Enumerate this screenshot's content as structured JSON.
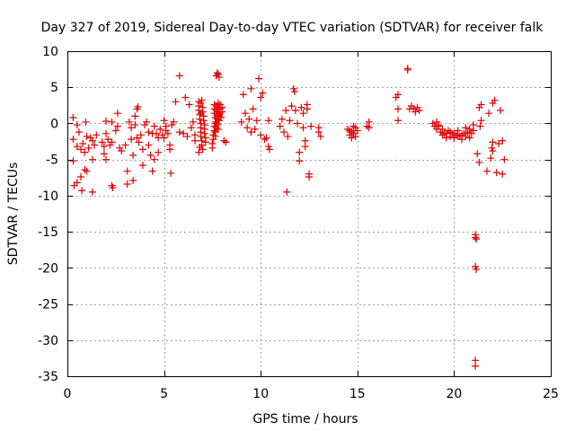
{
  "chart_data": {
    "type": "scatter",
    "title": "Day 327 of 2019, Sidereal Day-to-day VTEC variation (SDTVAR) for receiver falk",
    "xlabel": "GPS time / hours",
    "ylabel": "SDTVAR / TECUs",
    "xlim": [
      0,
      25
    ],
    "ylim": [
      -35,
      10
    ],
    "xticks": [
      0,
      5,
      10,
      15,
      20,
      25
    ],
    "yticks": [
      10,
      5,
      0,
      -5,
      -10,
      -15,
      -20,
      -25,
      -30,
      -35
    ],
    "xtick_labels": [
      "0",
      "5",
      "10",
      "15",
      "20",
      "25"
    ],
    "ytick_labels": [
      "10",
      "5",
      "0",
      "-5",
      "-10",
      "-15",
      "-20",
      "-25",
      "-30",
      "-35"
    ],
    "grid": true,
    "marker": "+",
    "color": "#e00000",
    "series": [
      {
        "name": "SDTVAR",
        "points": [
          [
            0.3,
            0.8
          ],
          [
            0.3,
            -2.2
          ],
          [
            0.3,
            -5.2
          ],
          [
            0.35,
            -8.6
          ],
          [
            0.5,
            -0.2
          ],
          [
            0.5,
            -3.2
          ],
          [
            0.5,
            -8.2
          ],
          [
            0.6,
            -1.2
          ],
          [
            0.7,
            -3.6
          ],
          [
            0.7,
            -7.4
          ],
          [
            0.75,
            -9.3
          ],
          [
            0.8,
            -2.8
          ],
          [
            0.9,
            -4.0
          ],
          [
            0.9,
            -6.4
          ],
          [
            0.95,
            0.2
          ],
          [
            1.0,
            -1.8
          ],
          [
            1.0,
            -6.6
          ],
          [
            1.1,
            -3.4
          ],
          [
            1.2,
            -2.0
          ],
          [
            1.3,
            -2.4
          ],
          [
            1.3,
            -5.0
          ],
          [
            1.3,
            -9.5
          ],
          [
            1.4,
            -3.0
          ],
          [
            1.5,
            -1.6
          ],
          [
            1.8,
            -2.6
          ],
          [
            1.9,
            -3.2
          ],
          [
            1.9,
            -4.2
          ],
          [
            2.0,
            0.3
          ],
          [
            2.0,
            -1.4
          ],
          [
            2.0,
            -5.0
          ],
          [
            2.1,
            -2.2
          ],
          [
            2.2,
            -3.0
          ],
          [
            2.3,
            0.2
          ],
          [
            2.3,
            -2.6
          ],
          [
            2.3,
            -8.6
          ],
          [
            2.35,
            -8.9
          ],
          [
            2.5,
            -1.0
          ],
          [
            2.6,
            1.4
          ],
          [
            2.6,
            -0.4
          ],
          [
            2.7,
            -3.4
          ],
          [
            2.8,
            -3.8
          ],
          [
            3.0,
            -3.0
          ],
          [
            3.1,
            -6.6
          ],
          [
            3.1,
            -8.4
          ],
          [
            3.2,
            0.2
          ],
          [
            3.3,
            -0.6
          ],
          [
            3.3,
            -2.2
          ],
          [
            3.4,
            -4.4
          ],
          [
            3.4,
            -7.9
          ],
          [
            3.5,
            1.0
          ],
          [
            3.5,
            -0.2
          ],
          [
            3.6,
            -2.0
          ],
          [
            3.6,
            2.0
          ],
          [
            3.65,
            2.3
          ],
          [
            3.7,
            -2.6
          ],
          [
            3.8,
            -1.6
          ],
          [
            3.9,
            -3.6
          ],
          [
            3.9,
            -5.8
          ],
          [
            4.0,
            -0.2
          ],
          [
            4.1,
            0.2
          ],
          [
            4.2,
            -1.2
          ],
          [
            4.2,
            -3.0
          ],
          [
            4.3,
            -4.4
          ],
          [
            4.4,
            -1.4
          ],
          [
            4.4,
            -6.6
          ],
          [
            4.5,
            -0.4
          ],
          [
            4.5,
            -5.0
          ],
          [
            4.6,
            -1.4
          ],
          [
            4.7,
            -2.0
          ],
          [
            4.7,
            -4.0
          ],
          [
            4.8,
            -0.8
          ],
          [
            4.9,
            -1.6
          ],
          [
            5.0,
            -2.0
          ],
          [
            5.0,
            0.4
          ],
          [
            5.1,
            -0.4
          ],
          [
            5.1,
            -1.0
          ],
          [
            5.2,
            -1.4
          ],
          [
            5.3,
            -3.0
          ],
          [
            5.3,
            -3.6
          ],
          [
            5.35,
            -6.9
          ],
          [
            5.4,
            -0.2
          ],
          [
            5.5,
            0.2
          ],
          [
            5.6,
            3.0
          ],
          [
            5.8,
            -1.2
          ],
          [
            5.8,
            6.6
          ],
          [
            6.0,
            -1.4
          ],
          [
            6.1,
            3.6
          ],
          [
            6.2,
            -1.8
          ],
          [
            6.3,
            2.6
          ],
          [
            6.4,
            -0.6
          ],
          [
            6.5,
            0.2
          ],
          [
            6.6,
            -1.6
          ],
          [
            6.6,
            -2.4
          ],
          [
            6.8,
            3.0
          ],
          [
            6.8,
            2.4
          ],
          [
            6.8,
            1.8
          ],
          [
            6.85,
            1.2
          ],
          [
            6.85,
            0.6
          ],
          [
            6.9,
            0
          ],
          [
            6.9,
            -0.6
          ],
          [
            6.9,
            -1.2
          ],
          [
            6.9,
            -1.8
          ],
          [
            6.95,
            -2.4
          ],
          [
            6.95,
            -3.0
          ],
          [
            7.0,
            -3.6
          ],
          [
            6.8,
            -4.0
          ],
          [
            6.85,
            -3.3
          ],
          [
            6.9,
            2.8
          ],
          [
            7.0,
            2.2
          ],
          [
            7.0,
            1.6
          ],
          [
            7.05,
            1.0
          ],
          [
            7.05,
            0.4
          ],
          [
            7.1,
            -0.2
          ],
          [
            7.1,
            -0.8
          ],
          [
            7.1,
            -1.4
          ],
          [
            7.15,
            -2.0
          ],
          [
            7.15,
            -2.6
          ],
          [
            6.95,
            3.2
          ],
          [
            6.9,
            1.4
          ],
          [
            7.6,
            2.6
          ],
          [
            7.6,
            2.0
          ],
          [
            7.6,
            1.4
          ],
          [
            7.65,
            0.8
          ],
          [
            7.65,
            0.2
          ],
          [
            7.6,
            -0.4
          ],
          [
            7.6,
            -1.0
          ],
          [
            7.55,
            -1.6
          ],
          [
            7.55,
            -2.2
          ],
          [
            7.5,
            -2.8
          ],
          [
            7.5,
            -3.4
          ],
          [
            7.7,
            2.4
          ],
          [
            7.7,
            1.8
          ],
          [
            7.75,
            1.2
          ],
          [
            7.75,
            0.6
          ],
          [
            7.7,
            0
          ],
          [
            7.7,
            -0.6
          ],
          [
            7.65,
            -1.2
          ],
          [
            7.65,
            -1.8
          ],
          [
            7.8,
            2.8
          ],
          [
            7.8,
            2.2
          ],
          [
            7.8,
            1.6
          ],
          [
            7.85,
            1.0
          ],
          [
            7.85,
            0.4
          ],
          [
            7.8,
            -0.2
          ],
          [
            7.8,
            -0.8
          ],
          [
            7.9,
            2.6
          ],
          [
            7.9,
            2.0
          ],
          [
            7.9,
            1.4
          ],
          [
            7.95,
            0.8
          ],
          [
            7.7,
            6.6
          ],
          [
            7.8,
            6.8
          ],
          [
            7.85,
            6.4
          ],
          [
            7.75,
            7.0
          ],
          [
            8.0,
            2.2
          ],
          [
            8.0,
            1.6
          ],
          [
            8.1,
            -2.4
          ],
          [
            8.2,
            -2.6
          ],
          [
            9.0,
            0.2
          ],
          [
            9.1,
            4.0
          ],
          [
            9.2,
            1.4
          ],
          [
            9.3,
            -0.6
          ],
          [
            9.4,
            0.6
          ],
          [
            9.5,
            4.8
          ],
          [
            9.5,
            -1.2
          ],
          [
            9.6,
            2.0
          ],
          [
            9.7,
            -0.8
          ],
          [
            9.8,
            0.4
          ],
          [
            9.9,
            6.2
          ],
          [
            10.0,
            -1.6
          ],
          [
            10.0,
            3.6
          ],
          [
            10.1,
            4.2
          ],
          [
            10.2,
            -2.2
          ],
          [
            10.3,
            -2.0
          ],
          [
            10.4,
            0.4
          ],
          [
            10.4,
            -3.2
          ],
          [
            10.45,
            -3.6
          ],
          [
            11.0,
            -0.4
          ],
          [
            11.1,
            0.6
          ],
          [
            11.2,
            -1.2
          ],
          [
            11.3,
            1.8
          ],
          [
            11.35,
            -9.5
          ],
          [
            11.4,
            -1.8
          ],
          [
            11.5,
            0.4
          ],
          [
            11.6,
            2.4
          ],
          [
            11.7,
            4.8
          ],
          [
            11.75,
            4.4
          ],
          [
            11.8,
            1.8
          ],
          [
            11.9,
            0
          ],
          [
            12.0,
            -4.0
          ],
          [
            12.0,
            -5.2
          ],
          [
            12.1,
            2.2
          ],
          [
            12.2,
            -0.6
          ],
          [
            12.2,
            1.4
          ],
          [
            12.3,
            -2.4
          ],
          [
            12.3,
            -3.2
          ],
          [
            12.4,
            2.0
          ],
          [
            12.4,
            2.6
          ],
          [
            12.5,
            -7.0
          ],
          [
            12.5,
            -7.4
          ],
          [
            12.6,
            -0.4
          ],
          [
            13.0,
            -0.6
          ],
          [
            13.0,
            -1.2
          ],
          [
            13.1,
            -1.8
          ],
          [
            14.5,
            -0.8
          ],
          [
            14.6,
            -1.0
          ],
          [
            14.6,
            -1.6
          ],
          [
            14.7,
            -1.2
          ],
          [
            14.7,
            -2.0
          ],
          [
            14.8,
            -0.4
          ],
          [
            14.8,
            -1.4
          ],
          [
            14.9,
            -0.6
          ],
          [
            14.9,
            -1.8
          ],
          [
            15.0,
            -1.0
          ],
          [
            15.5,
            -0.4
          ],
          [
            15.6,
            0.2
          ],
          [
            15.6,
            -0.6
          ],
          [
            17.0,
            3.6
          ],
          [
            17.1,
            4.0
          ],
          [
            17.1,
            2.0
          ],
          [
            17.1,
            0.4
          ],
          [
            17.6,
            7.4
          ],
          [
            17.6,
            7.6
          ],
          [
            17.7,
            2.0
          ],
          [
            17.8,
            2.4
          ],
          [
            17.9,
            2.0
          ],
          [
            18.0,
            1.6
          ],
          [
            18.1,
            2.2
          ],
          [
            18.2,
            1.8
          ],
          [
            18.9,
            0
          ],
          [
            19.0,
            -0.4
          ],
          [
            19.1,
            -0.8
          ],
          [
            19.2,
            -0.4
          ],
          [
            19.3,
            -1.2
          ],
          [
            19.4,
            -1.6
          ],
          [
            19.5,
            -1.4
          ],
          [
            19.6,
            -2.0
          ],
          [
            19.7,
            -1.0
          ],
          [
            19.8,
            -1.8
          ],
          [
            19.9,
            -1.4
          ],
          [
            20.0,
            -2.0
          ],
          [
            20.1,
            -1.6
          ],
          [
            20.2,
            -1.0
          ],
          [
            20.3,
            -1.8
          ],
          [
            20.4,
            -2.2
          ],
          [
            20.5,
            -1.4
          ],
          [
            20.6,
            -0.6
          ],
          [
            20.7,
            -1.2
          ],
          [
            20.8,
            -2.0
          ],
          [
            20.9,
            -1.4
          ],
          [
            21.0,
            -1.0
          ],
          [
            21.0,
            -0.2
          ],
          [
            19.1,
            0.2
          ],
          [
            19.2,
            -0.2
          ],
          [
            19.4,
            -0.8
          ],
          [
            19.6,
            -1.4
          ],
          [
            19.8,
            -1.2
          ],
          [
            20.0,
            -1.4
          ],
          [
            20.2,
            -1.8
          ],
          [
            20.4,
            -1.6
          ],
          [
            20.6,
            -1.8
          ],
          [
            20.8,
            -0.8
          ],
          [
            21.1,
            -15.4
          ],
          [
            21.1,
            -15.8
          ],
          [
            21.15,
            -16.0
          ],
          [
            21.1,
            -19.8
          ],
          [
            21.15,
            -20.2
          ],
          [
            21.1,
            -32.8
          ],
          [
            21.1,
            -33.6
          ],
          [
            21.2,
            -4.2
          ],
          [
            21.3,
            -5.4
          ],
          [
            21.35,
            -0.4
          ],
          [
            21.3,
            2.2
          ],
          [
            21.4,
            2.6
          ],
          [
            21.4,
            0.4
          ],
          [
            21.7,
            -6.6
          ],
          [
            21.8,
            1.4
          ],
          [
            21.9,
            -4.8
          ],
          [
            21.95,
            -3.4
          ],
          [
            22.0,
            -2.6
          ],
          [
            22.0,
            -3.8
          ],
          [
            22.0,
            2.8
          ],
          [
            22.1,
            3.2
          ],
          [
            22.2,
            -6.8
          ],
          [
            22.3,
            -2.8
          ],
          [
            22.4,
            1.8
          ],
          [
            22.5,
            -2.4
          ],
          [
            22.5,
            -7.0
          ],
          [
            22.6,
            -5.0
          ]
        ]
      }
    ]
  }
}
